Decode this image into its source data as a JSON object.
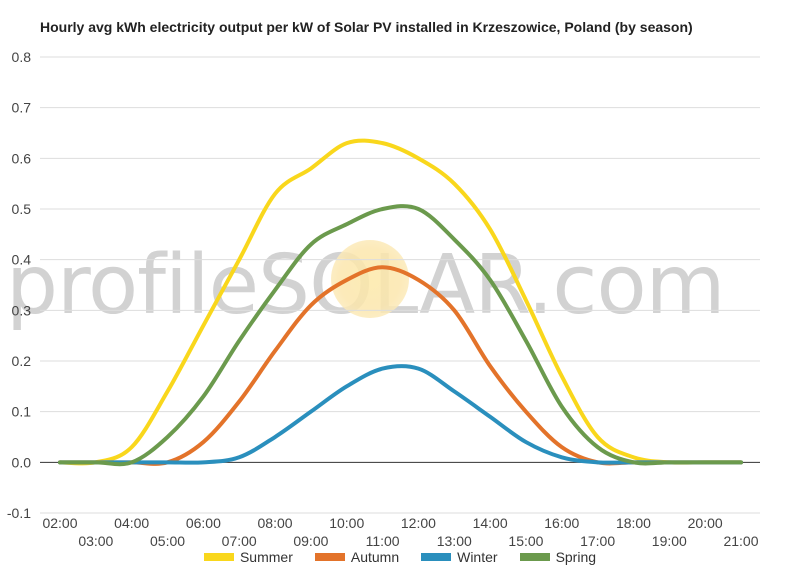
{
  "chart_data": {
    "type": "line",
    "title": "Hourly avg kWh electricity output per kW of Solar PV installed in Krzeszowice, Poland (by season)",
    "watermark": "profileSOLAR.com",
    "x": [
      "02:00",
      "03:00",
      "04:00",
      "05:00",
      "06:00",
      "07:00",
      "08:00",
      "09:00",
      "10:00",
      "11:00",
      "12:00",
      "13:00",
      "14:00",
      "15:00",
      "16:00",
      "17:00",
      "18:00",
      "19:00",
      "20:00",
      "21:00"
    ],
    "x_ticks_upper": [
      "02:00",
      "04:00",
      "06:00",
      "08:00",
      "10:00",
      "12:00",
      "14:00",
      "16:00",
      "18:00",
      "20:00"
    ],
    "x_ticks_lower": [
      "03:00",
      "05:00",
      "07:00",
      "09:00",
      "11:00",
      "13:00",
      "15:00",
      "17:00",
      "19:00",
      "21:00"
    ],
    "ylim": [
      -0.1,
      0.8
    ],
    "yticks": [
      "0.8",
      "0.7",
      "0.6",
      "0.5",
      "0.4",
      "0.3",
      "0.2",
      "0.1",
      "0.0",
      "-0.1"
    ],
    "grid": true,
    "legend_position": "bottom",
    "series": [
      {
        "name": "Summer",
        "color": "#f9d71c",
        "values": [
          0,
          0,
          0.03,
          0.14,
          0.27,
          0.4,
          0.53,
          0.58,
          0.63,
          0.63,
          0.6,
          0.55,
          0.46,
          0.32,
          0.17,
          0.05,
          0.01,
          0,
          0,
          0
        ]
      },
      {
        "name": "Autumn",
        "color": "#e3732a",
        "values": [
          0,
          0,
          0,
          0,
          0.04,
          0.12,
          0.22,
          0.31,
          0.36,
          0.385,
          0.36,
          0.3,
          0.19,
          0.1,
          0.03,
          0,
          0,
          0,
          0,
          0
        ]
      },
      {
        "name": "Winter",
        "color": "#2a8fbd",
        "values": [
          0,
          0,
          0,
          0,
          0,
          0.01,
          0.05,
          0.1,
          0.15,
          0.185,
          0.185,
          0.14,
          0.09,
          0.04,
          0.01,
          0,
          0,
          0,
          0,
          0
        ]
      },
      {
        "name": "Spring",
        "color": "#6b9a4d",
        "values": [
          0,
          0,
          0,
          0.05,
          0.13,
          0.24,
          0.34,
          0.43,
          0.47,
          0.5,
          0.5,
          0.44,
          0.36,
          0.24,
          0.11,
          0.03,
          0,
          0,
          0,
          0
        ]
      }
    ]
  }
}
